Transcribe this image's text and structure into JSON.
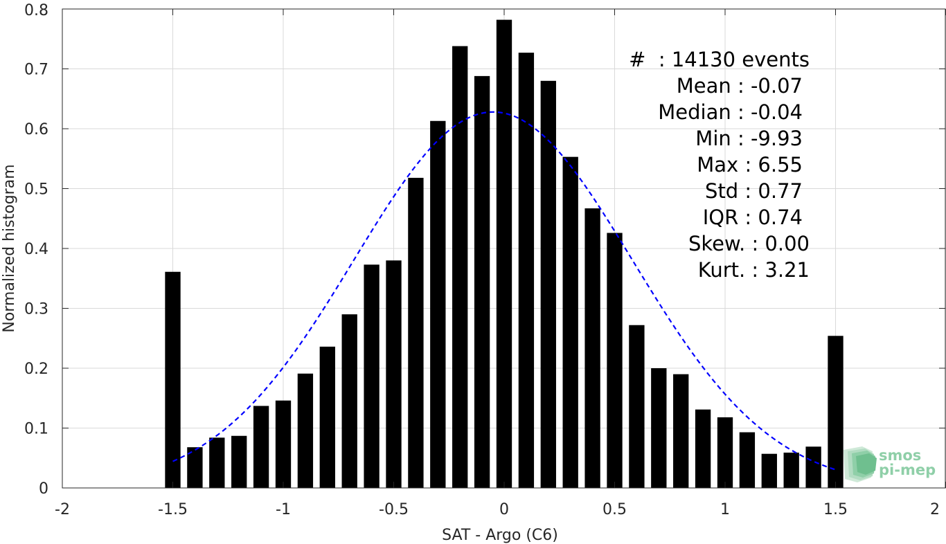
{
  "chart_data": {
    "type": "bar",
    "title": "",
    "xlabel": "SAT - Argo (C6)",
    "ylabel": "Normalized histogram",
    "xlim": [
      -2,
      2
    ],
    "ylim": [
      0,
      0.8
    ],
    "grid": true,
    "xticks": [
      -2,
      -1.5,
      -1,
      -0.5,
      0,
      0.5,
      1,
      1.5,
      2
    ],
    "xtick_labels": [
      "-2",
      "-1.5",
      "-1",
      "-0.5",
      "0",
      "0.5",
      "1",
      "1.5",
      "2"
    ],
    "yticks": [
      0,
      0.1,
      0.2,
      0.3,
      0.4,
      0.5,
      0.6,
      0.7,
      0.8
    ],
    "ytick_labels": [
      "0",
      "0.1",
      "0.2",
      "0.3",
      "0.4",
      "0.5",
      "0.6",
      "0.7",
      "0.8"
    ],
    "bar_width": 0.07,
    "bar_color": "#000000",
    "bars": {
      "x": [
        -1.5,
        -1.4,
        -1.3,
        -1.2,
        -1.1,
        -1.0,
        -0.9,
        -0.8,
        -0.7,
        -0.6,
        -0.5,
        -0.4,
        -0.3,
        -0.2,
        -0.1,
        0.0,
        0.1,
        0.2,
        0.3,
        0.4,
        0.5,
        0.6,
        0.7,
        0.8,
        0.9,
        1.0,
        1.1,
        1.2,
        1.3,
        1.4,
        1.5
      ],
      "values": [
        0.361,
        0.068,
        0.084,
        0.087,
        0.137,
        0.146,
        0.191,
        0.236,
        0.29,
        0.373,
        0.38,
        0.518,
        0.613,
        0.738,
        0.688,
        0.782,
        0.727,
        0.68,
        0.553,
        0.467,
        0.426,
        0.272,
        0.2,
        0.19,
        0.131,
        0.118,
        0.093,
        0.057,
        0.059,
        0.069,
        0.254
      ]
    },
    "fit_curve": {
      "style": "dashed",
      "color": "#0000ff",
      "mean": -0.05,
      "std": 0.63,
      "peak": 0.628,
      "x_range": [
        -1.5,
        1.5
      ]
    },
    "stats_lines": [
      "#  : 14130 events",
      "Mean : -0.07",
      "Median : -0.04",
      "Min : -9.93",
      "Max : 6.55",
      "Std : 0.77",
      "IQR : 0.74",
      "Skew. : 0.00",
      "Kurt. : 3.21"
    ],
    "logo": {
      "line1": "smos",
      "line2": "pi-mep",
      "color": "#8fcfa8"
    }
  }
}
